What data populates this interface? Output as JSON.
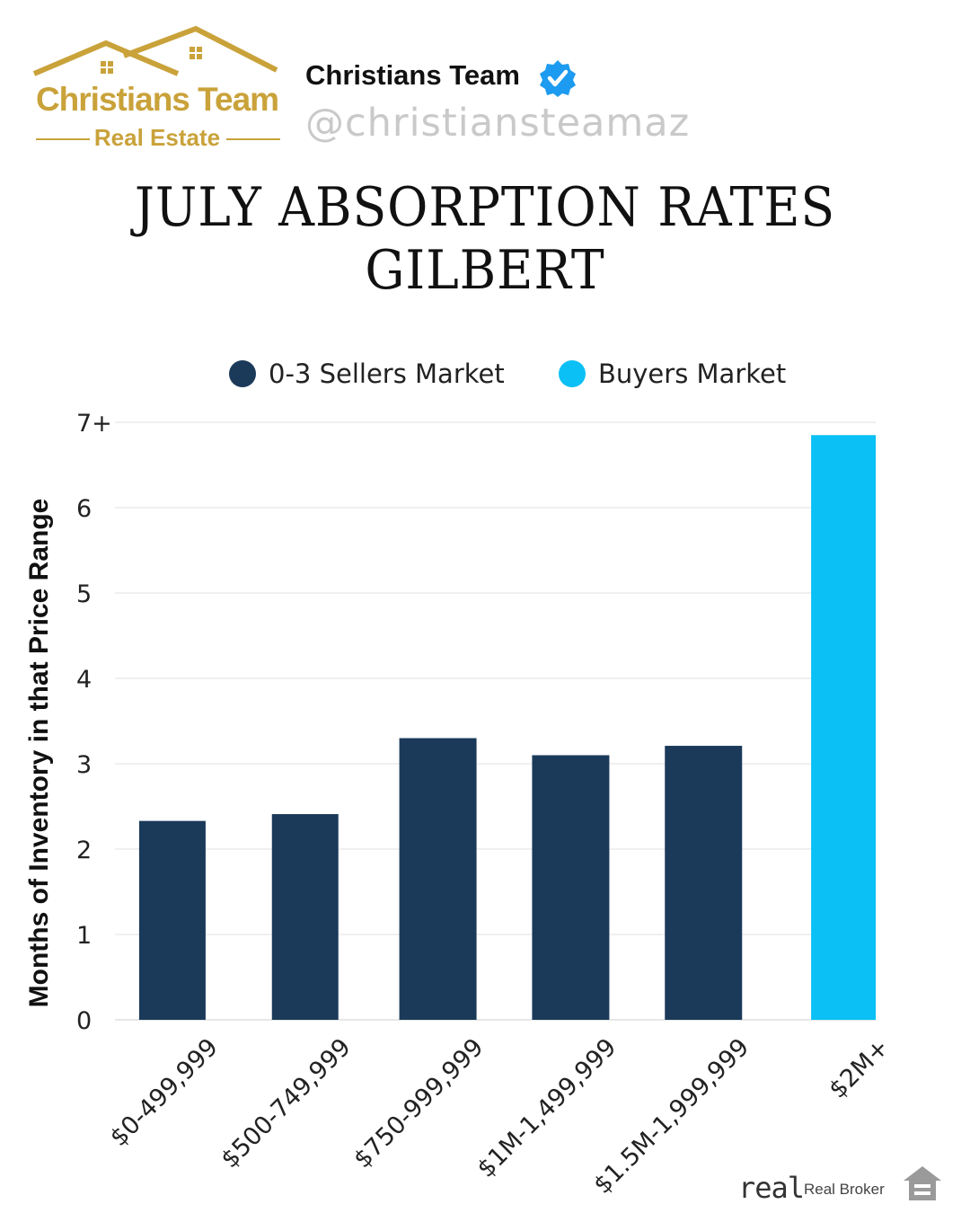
{
  "brand": {
    "logo_main": "Christians Team",
    "logo_sub": "Real Estate",
    "name": "Christians Team",
    "handle": "@christiansteamaz",
    "verified_icon": "verified-badge-icon",
    "gold_color": "#c9a23a",
    "verified_color": "#1d9bf0"
  },
  "page": {
    "title": "JULY ABSORPTION RATES GILBERT"
  },
  "chart_data": {
    "type": "bar",
    "title": "",
    "xlabel": "",
    "ylabel": "Months of Inventory in that Price Range",
    "categories": [
      "$0-499,999",
      "$500-749,999",
      "$750-999,999",
      "$1M-1,499,999",
      "$1.5M-1,999,999",
      "$2M+"
    ],
    "values": [
      2.33,
      2.41,
      3.3,
      3.1,
      3.21,
      6.85
    ],
    "bar_markets": [
      "sellers",
      "sellers",
      "sellers",
      "sellers",
      "sellers",
      "buyers"
    ],
    "ylim": [
      0,
      7
    ],
    "yticks": [
      0,
      1,
      2,
      3,
      4,
      5,
      6,
      7
    ],
    "ytick_labels": [
      "0",
      "1",
      "2",
      "3",
      "4",
      "5",
      "6",
      "7+"
    ],
    "grid": true,
    "legend_position": "top-center",
    "legend": [
      {
        "key": "sellers",
        "label": "0-3 Sellers Market",
        "color": "#1b3a5a"
      },
      {
        "key": "buyers",
        "label": "Buyers Market",
        "color": "#0bc0f5"
      }
    ]
  },
  "footer": {
    "logo_text": "real",
    "broker_label": "Real Broker",
    "equal_housing_icon": "equal-housing-icon"
  }
}
